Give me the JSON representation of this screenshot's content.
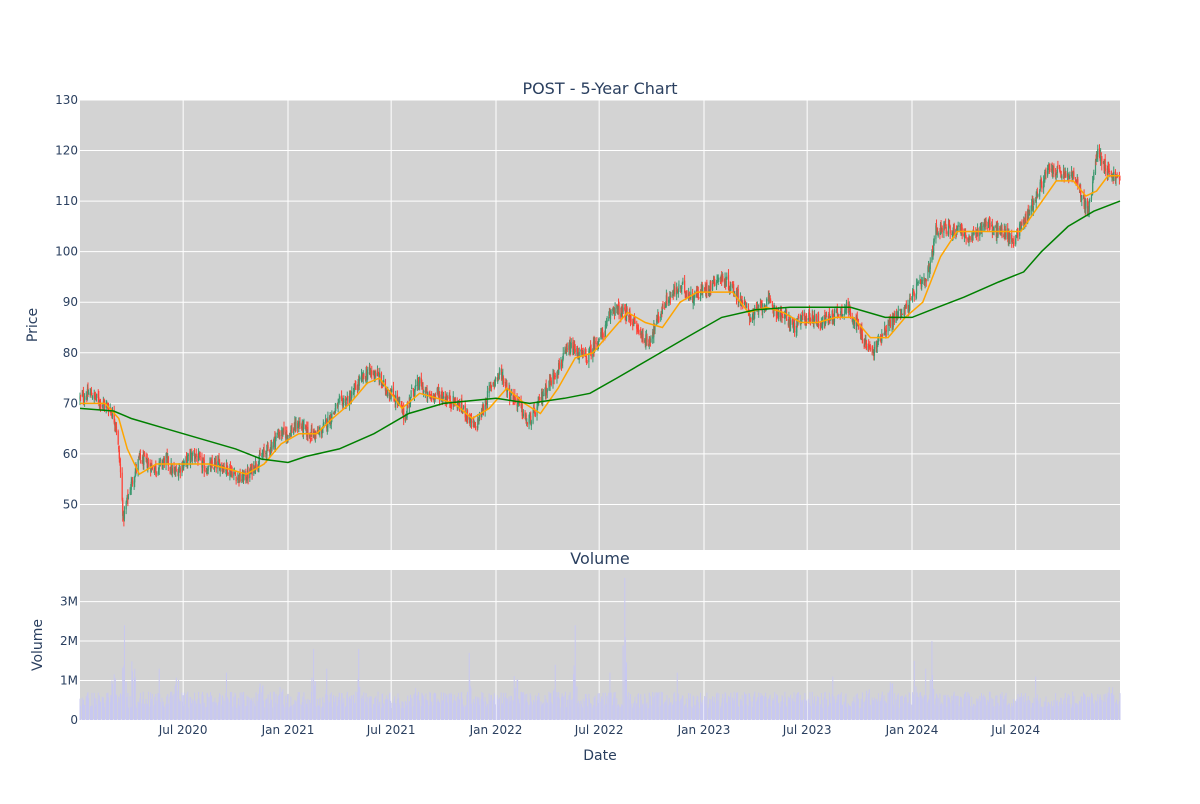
{
  "chart_data": [
    {
      "type": "candlestick",
      "title": "POST - 5-Year Chart",
      "ylabel": "Price",
      "ylim": [
        41,
        130
      ],
      "yticks": [
        50,
        60,
        70,
        80,
        90,
        100,
        110,
        120,
        130
      ],
      "xlim": [
        "2020-01-02",
        "2024-12-31"
      ],
      "grid": true,
      "legend": "none",
      "colors": {
        "increasing": "#3d9970",
        "decreasing": "#ff4136",
        "short_ma": "#ffa500",
        "long_ma": "#008000",
        "plot_bg": "#d3d3d3"
      },
      "price_path": [
        [
          "2020-01-02",
          71
        ],
        [
          "2020-01-20",
          72
        ],
        [
          "2020-02-10",
          70
        ],
        [
          "2020-02-24",
          69
        ],
        [
          "2020-03-05",
          66
        ],
        [
          "2020-03-12",
          58
        ],
        [
          "2020-03-18",
          47
        ],
        [
          "2020-03-23",
          50
        ],
        [
          "2020-04-01",
          54
        ],
        [
          "2020-04-15",
          59
        ],
        [
          "2020-05-01",
          58
        ],
        [
          "2020-05-15",
          57
        ],
        [
          "2020-06-01",
          59
        ],
        [
          "2020-06-15",
          56
        ],
        [
          "2020-07-01",
          58
        ],
        [
          "2020-07-20",
          60
        ],
        [
          "2020-08-10",
          57
        ],
        [
          "2020-09-01",
          58
        ],
        [
          "2020-09-20",
          57
        ],
        [
          "2020-10-10",
          55
        ],
        [
          "2020-10-25",
          56
        ],
        [
          "2020-11-05",
          58
        ],
        [
          "2020-11-20",
          60
        ],
        [
          "2020-12-05",
          62
        ],
        [
          "2020-12-15",
          64
        ],
        [
          "2021-01-01",
          64
        ],
        [
          "2021-01-20",
          66
        ],
        [
          "2021-02-05",
          64
        ],
        [
          "2021-02-25",
          64
        ],
        [
          "2021-03-15",
          67
        ],
        [
          "2021-04-01",
          70
        ],
        [
          "2021-04-20",
          71
        ],
        [
          "2021-05-05",
          74
        ],
        [
          "2021-05-20",
          76
        ],
        [
          "2021-06-05",
          76
        ],
        [
          "2021-06-20",
          73
        ],
        [
          "2021-07-01",
          72
        ],
        [
          "2021-07-15",
          70
        ],
        [
          "2021-07-25",
          67
        ],
        [
          "2021-08-05",
          72
        ],
        [
          "2021-08-20",
          74
        ],
        [
          "2021-09-05",
          71
        ],
        [
          "2021-09-20",
          72
        ],
        [
          "2021-10-05",
          71
        ],
        [
          "2021-10-25",
          70
        ],
        [
          "2021-11-10",
          68
        ],
        [
          "2021-11-25",
          65
        ],
        [
          "2021-12-10",
          69
        ],
        [
          "2021-12-25",
          74
        ],
        [
          "2022-01-10",
          76
        ],
        [
          "2022-01-25",
          72
        ],
        [
          "2022-02-10",
          70
        ],
        [
          "2022-02-25",
          66
        ],
        [
          "2022-03-10",
          68
        ],
        [
          "2022-03-25",
          72
        ],
        [
          "2022-04-10",
          75
        ],
        [
          "2022-04-25",
          78
        ],
        [
          "2022-05-10",
          81
        ],
        [
          "2022-05-25",
          80
        ],
        [
          "2022-06-10",
          79
        ],
        [
          "2022-06-25",
          82
        ],
        [
          "2022-07-10",
          84
        ],
        [
          "2022-07-25",
          89
        ],
        [
          "2022-08-10",
          88
        ],
        [
          "2022-08-25",
          87
        ],
        [
          "2022-09-10",
          84
        ],
        [
          "2022-09-25",
          82
        ],
        [
          "2022-10-10",
          86
        ],
        [
          "2022-10-25",
          90
        ],
        [
          "2022-11-10",
          92
        ],
        [
          "2022-11-25",
          93
        ],
        [
          "2022-12-10",
          91
        ],
        [
          "2022-12-25",
          92
        ],
        [
          "2023-01-10",
          93
        ],
        [
          "2023-01-25",
          95
        ],
        [
          "2023-02-10",
          94
        ],
        [
          "2023-02-25",
          92
        ],
        [
          "2023-03-10",
          90
        ],
        [
          "2023-03-25",
          87
        ],
        [
          "2023-04-10",
          89
        ],
        [
          "2023-04-25",
          90
        ],
        [
          "2023-05-10",
          88
        ],
        [
          "2023-05-25",
          87
        ],
        [
          "2023-06-10",
          85
        ],
        [
          "2023-06-25",
          87
        ],
        [
          "2023-07-10",
          87
        ],
        [
          "2023-07-25",
          86
        ],
        [
          "2023-08-10",
          87
        ],
        [
          "2023-08-25",
          88
        ],
        [
          "2023-09-10",
          89
        ],
        [
          "2023-09-25",
          86
        ],
        [
          "2023-10-10",
          82
        ],
        [
          "2023-10-25",
          80
        ],
        [
          "2023-11-10",
          84
        ],
        [
          "2023-11-25",
          86
        ],
        [
          "2023-12-10",
          88
        ],
        [
          "2023-12-25",
          89
        ],
        [
          "2024-01-10",
          93
        ],
        [
          "2024-01-25",
          94
        ],
        [
          "2024-02-05",
          99
        ],
        [
          "2024-02-10",
          104
        ],
        [
          "2024-02-25",
          105
        ],
        [
          "2024-03-10",
          104
        ],
        [
          "2024-03-25",
          105
        ],
        [
          "2024-04-10",
          102
        ],
        [
          "2024-04-25",
          104
        ],
        [
          "2024-05-10",
          106
        ],
        [
          "2024-05-25",
          104
        ],
        [
          "2024-06-10",
          104
        ],
        [
          "2024-06-25",
          102
        ],
        [
          "2024-07-10",
          105
        ],
        [
          "2024-07-25",
          108
        ],
        [
          "2024-08-10",
          112
        ],
        [
          "2024-08-25",
          116
        ],
        [
          "2024-09-10",
          116
        ],
        [
          "2024-09-25",
          115
        ],
        [
          "2024-10-10",
          115
        ],
        [
          "2024-10-25",
          111
        ],
        [
          "2024-11-05",
          108
        ],
        [
          "2024-11-12",
          112
        ],
        [
          "2024-11-20",
          120
        ],
        [
          "2024-12-01",
          118
        ],
        [
          "2024-12-10",
          116
        ],
        [
          "2024-12-20",
          115
        ],
        [
          "2024-12-31",
          114
        ]
      ],
      "short_ma": [
        [
          "2020-01-02",
          70
        ],
        [
          "2020-02-15",
          70
        ],
        [
          "2020-03-10",
          67
        ],
        [
          "2020-03-25",
          61
        ],
        [
          "2020-04-15",
          56
        ],
        [
          "2020-05-15",
          58
        ],
        [
          "2020-06-15",
          58
        ],
        [
          "2020-08-15",
          58
        ],
        [
          "2020-09-20",
          57
        ],
        [
          "2020-10-20",
          56
        ],
        [
          "2020-11-20",
          58
        ],
        [
          "2020-12-20",
          62
        ],
        [
          "2021-01-20",
          64
        ],
        [
          "2021-02-20",
          64
        ],
        [
          "2021-03-20",
          67
        ],
        [
          "2021-04-20",
          70
        ],
        [
          "2021-05-20",
          74
        ],
        [
          "2021-06-10",
          75
        ],
        [
          "2021-07-01",
          72
        ],
        [
          "2021-07-20",
          69
        ],
        [
          "2021-08-20",
          72
        ],
        [
          "2021-09-20",
          71
        ],
        [
          "2021-10-20",
          70
        ],
        [
          "2021-11-20",
          67
        ],
        [
          "2021-12-20",
          69
        ],
        [
          "2022-01-20",
          73
        ],
        [
          "2022-02-20",
          70
        ],
        [
          "2022-03-20",
          68
        ],
        [
          "2022-04-20",
          73
        ],
        [
          "2022-05-20",
          79
        ],
        [
          "2022-06-20",
          80
        ],
        [
          "2022-07-20",
          84
        ],
        [
          "2022-08-20",
          88
        ],
        [
          "2022-09-20",
          86
        ],
        [
          "2022-10-20",
          85
        ],
        [
          "2022-11-20",
          90
        ],
        [
          "2022-12-20",
          92
        ],
        [
          "2023-01-20",
          92
        ],
        [
          "2023-02-20",
          92
        ],
        [
          "2023-03-20",
          88
        ],
        [
          "2023-04-20",
          89
        ],
        [
          "2023-05-20",
          88
        ],
        [
          "2023-06-20",
          86
        ],
        [
          "2023-07-20",
          86
        ],
        [
          "2023-08-20",
          87
        ],
        [
          "2023-09-20",
          87
        ],
        [
          "2023-10-20",
          83
        ],
        [
          "2023-11-20",
          83
        ],
        [
          "2023-12-20",
          87
        ],
        [
          "2024-01-20",
          90
        ],
        [
          "2024-02-20",
          99
        ],
        [
          "2024-03-20",
          104
        ],
        [
          "2024-04-20",
          104
        ],
        [
          "2024-05-20",
          104
        ],
        [
          "2024-06-20",
          104
        ],
        [
          "2024-07-10",
          104
        ],
        [
          "2024-08-10",
          109
        ],
        [
          "2024-09-10",
          114
        ],
        [
          "2024-10-10",
          114
        ],
        [
          "2024-11-01",
          111
        ],
        [
          "2024-11-20",
          112
        ],
        [
          "2024-12-10",
          115
        ],
        [
          "2024-12-31",
          115
        ]
      ],
      "long_ma": [
        [
          "2020-01-02",
          69
        ],
        [
          "2020-03-01",
          68.5
        ],
        [
          "2020-04-01",
          67
        ],
        [
          "2020-06-01",
          65
        ],
        [
          "2020-08-01",
          63
        ],
        [
          "2020-10-01",
          61
        ],
        [
          "2020-11-15",
          59
        ],
        [
          "2021-01-01",
          58.3
        ],
        [
          "2021-02-01",
          59.5
        ],
        [
          "2021-04-01",
          61
        ],
        [
          "2021-06-01",
          64
        ],
        [
          "2021-08-01",
          68
        ],
        [
          "2021-10-01",
          70
        ],
        [
          "2022-01-01",
          71
        ],
        [
          "2022-03-01",
          70
        ],
        [
          "2022-05-01",
          71
        ],
        [
          "2022-06-15",
          72
        ],
        [
          "2022-08-01",
          75
        ],
        [
          "2022-10-01",
          79
        ],
        [
          "2022-12-01",
          83
        ],
        [
          "2023-02-01",
          87
        ],
        [
          "2023-04-01",
          88.5
        ],
        [
          "2023-06-01",
          89
        ],
        [
          "2023-08-01",
          89
        ],
        [
          "2023-09-15",
          89
        ],
        [
          "2023-11-15",
          87
        ],
        [
          "2024-01-01",
          87
        ],
        [
          "2024-02-15",
          89
        ],
        [
          "2024-04-01",
          91
        ],
        [
          "2024-06-01",
          94
        ],
        [
          "2024-07-15",
          96
        ],
        [
          "2024-08-15",
          100
        ],
        [
          "2024-10-01",
          105
        ],
        [
          "2024-11-15",
          108
        ],
        [
          "2024-12-31",
          110
        ]
      ]
    },
    {
      "type": "bar",
      "title": "Volume",
      "xlabel": "Date",
      "ylabel": "Volume",
      "ylim": [
        0,
        3800000
      ],
      "yticks": [
        0,
        1000000,
        2000000,
        3000000
      ],
      "ytick_labels": [
        "0",
        "1M",
        "2M",
        "3M"
      ],
      "xticks": [
        "2020-07-01",
        "2021-01-01",
        "2021-07-01",
        "2022-01-01",
        "2022-07-01",
        "2023-01-01",
        "2023-07-01",
        "2024-01-01",
        "2024-07-01"
      ],
      "xtick_labels": [
        "Jul 2020",
        "Jan 2021",
        "Jul 2021",
        "Jan 2022",
        "Jul 2022",
        "Jan 2023",
        "Jul 2023",
        "Jan 2024",
        "Jul 2024"
      ],
      "xlim": [
        "2020-01-02",
        "2024-12-31"
      ],
      "grid": true,
      "colors": {
        "bar": "#c8c8f0",
        "plot_bg": "#d3d3d3"
      },
      "baseline": 600000,
      "spikes": [
        [
          "2020-03-01",
          2100000
        ],
        [
          "2020-03-20",
          2400000
        ],
        [
          "2020-04-05",
          2800000
        ],
        [
          "2020-05-20",
          1300000
        ],
        [
          "2020-06-20",
          1900000
        ],
        [
          "2020-08-15",
          1100000
        ],
        [
          "2020-09-15",
          1200000
        ],
        [
          "2020-11-15",
          1900000
        ],
        [
          "2020-12-20",
          1600000
        ],
        [
          "2021-02-15",
          1800000
        ],
        [
          "2021-03-10",
          1300000
        ],
        [
          "2021-05-05",
          1800000
        ],
        [
          "2021-08-15",
          1400000
        ],
        [
          "2021-11-15",
          1700000
        ],
        [
          "2022-02-05",
          1900000
        ],
        [
          "2022-04-15",
          1400000
        ],
        [
          "2022-05-20",
          2400000
        ],
        [
          "2022-07-20",
          1200000
        ],
        [
          "2022-08-15",
          3600000
        ],
        [
          "2022-11-15",
          1200000
        ],
        [
          "2023-02-05",
          1200000
        ],
        [
          "2023-04-15",
          1100000
        ],
        [
          "2023-08-15",
          1100000
        ],
        [
          "2023-10-15",
          1400000
        ],
        [
          "2023-11-25",
          1600000
        ],
        [
          "2024-01-05",
          1500000
        ],
        [
          "2024-01-25",
          1300000
        ],
        [
          "2024-02-05",
          2000000
        ],
        [
          "2024-05-05",
          1100000
        ],
        [
          "2024-08-05",
          1100000
        ],
        [
          "2024-11-10",
          1400000
        ],
        [
          "2024-12-15",
          1700000
        ]
      ]
    }
  ]
}
